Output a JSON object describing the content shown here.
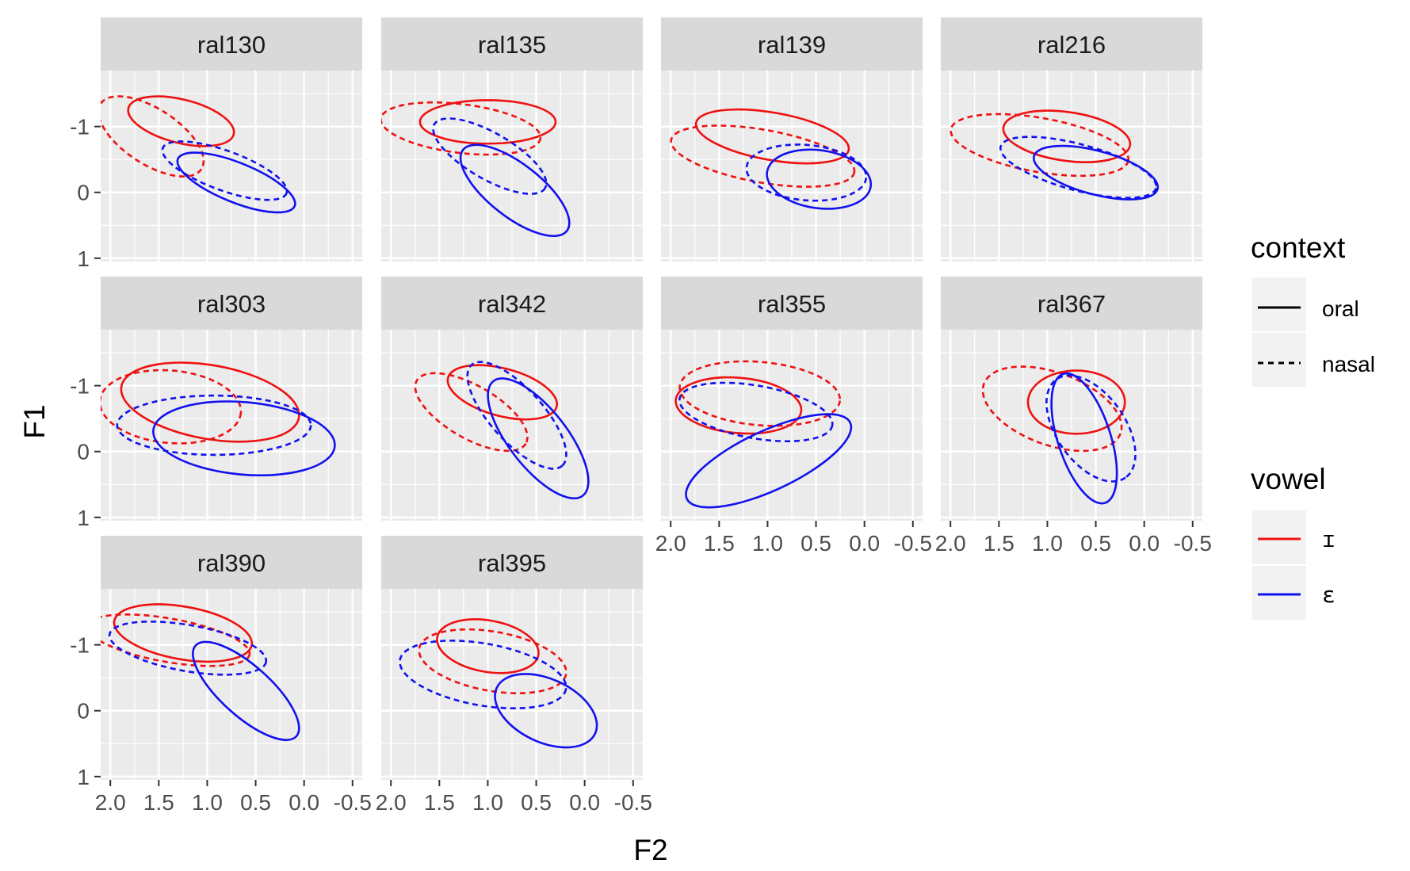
{
  "chart_data": {
    "type": "ellipse",
    "xlabel": "F2",
    "ylabel": "F1",
    "x_reversed": true,
    "y_reversed": true,
    "xlim": [
      2.1,
      -0.6
    ],
    "ylim": [
      -1.85,
      1.05
    ],
    "x_ticks": [
      2.0,
      1.5,
      1.0,
      0.5,
      0.0,
      -0.5
    ],
    "x_tick_labels": [
      "2.0",
      "1.5",
      "1.0",
      "0.5",
      "0.0",
      "-0.5"
    ],
    "y_ticks": [
      -1,
      0,
      1
    ],
    "y_tick_labels": [
      "-1",
      "0",
      "1"
    ],
    "grid": true,
    "legend_position": "right",
    "colors": {
      "ɪ": "#ee1111",
      "ɛ": "#1111ee"
    },
    "legend": {
      "context": {
        "title": "context",
        "items": [
          {
            "label": "oral",
            "linetype": "solid"
          },
          {
            "label": "nasal",
            "linetype": "dashed"
          }
        ]
      },
      "vowel": {
        "title": "vowel",
        "items": [
          {
            "label": "ɪ",
            "color": "#ee1111"
          },
          {
            "label": "ɛ",
            "color": "#1111ee"
          }
        ]
      }
    },
    "panels": [
      {
        "name": "ral130",
        "ellipses": [
          {
            "vowel": "ɪ",
            "context": "oral",
            "cx": 1.27,
            "cy": -1.08,
            "rx": 0.56,
            "ry": 0.33,
            "angle": 14
          },
          {
            "vowel": "ɪ",
            "context": "nasal",
            "cx": 1.58,
            "cy": -0.85,
            "rx": 0.62,
            "ry": 0.42,
            "angle": 33
          },
          {
            "vowel": "ɛ",
            "context": "oral",
            "cx": 0.7,
            "cy": -0.15,
            "rx": 0.65,
            "ry": 0.3,
            "angle": 22
          },
          {
            "vowel": "ɛ",
            "context": "nasal",
            "cx": 0.82,
            "cy": -0.33,
            "rx": 0.68,
            "ry": 0.3,
            "angle": 20
          }
        ]
      },
      {
        "name": "ral135",
        "ellipses": [
          {
            "vowel": "ɪ",
            "context": "oral",
            "cx": 1.0,
            "cy": -1.07,
            "rx": 0.7,
            "ry": 0.33,
            "angle": 0
          },
          {
            "vowel": "ɪ",
            "context": "nasal",
            "cx": 1.28,
            "cy": -0.97,
            "rx": 0.83,
            "ry": 0.37,
            "angle": 7
          },
          {
            "vowel": "ɛ",
            "context": "oral",
            "cx": 0.72,
            "cy": -0.03,
            "rx": 0.68,
            "ry": 0.4,
            "angle": 38
          },
          {
            "vowel": "ɛ",
            "context": "nasal",
            "cx": 0.98,
            "cy": -0.55,
            "rx": 0.66,
            "ry": 0.35,
            "angle": 30
          }
        ]
      },
      {
        "name": "ral139",
        "ellipses": [
          {
            "vowel": "ɪ",
            "context": "oral",
            "cx": 0.95,
            "cy": -0.85,
            "rx": 0.8,
            "ry": 0.36,
            "angle": 10
          },
          {
            "vowel": "ɪ",
            "context": "nasal",
            "cx": 1.05,
            "cy": -0.55,
            "rx": 0.96,
            "ry": 0.4,
            "angle": 10
          },
          {
            "vowel": "ɛ",
            "context": "oral",
            "cx": 0.47,
            "cy": -0.2,
            "rx": 0.54,
            "ry": 0.44,
            "angle": 8
          },
          {
            "vowel": "ɛ",
            "context": "nasal",
            "cx": 0.6,
            "cy": -0.3,
            "rx": 0.62,
            "ry": 0.42,
            "angle": 5
          }
        ]
      },
      {
        "name": "ral216",
        "ellipses": [
          {
            "vowel": "ɪ",
            "context": "oral",
            "cx": 0.8,
            "cy": -0.85,
            "rx": 0.66,
            "ry": 0.37,
            "angle": 8
          },
          {
            "vowel": "ɪ",
            "context": "nasal",
            "cx": 1.08,
            "cy": -0.72,
            "rx": 0.93,
            "ry": 0.41,
            "angle": 10
          },
          {
            "vowel": "ɛ",
            "context": "oral",
            "cx": 0.5,
            "cy": -0.3,
            "rx": 0.66,
            "ry": 0.33,
            "angle": 15
          },
          {
            "vowel": "ɛ",
            "context": "nasal",
            "cx": 0.68,
            "cy": -0.38,
            "rx": 0.83,
            "ry": 0.35,
            "angle": 15
          }
        ]
      },
      {
        "name": "ral303",
        "ellipses": [
          {
            "vowel": "ɪ",
            "context": "oral",
            "cx": 0.97,
            "cy": -0.75,
            "rx": 0.93,
            "ry": 0.56,
            "angle": 10
          },
          {
            "vowel": "ɪ",
            "context": "nasal",
            "cx": 1.38,
            "cy": -0.68,
            "rx": 0.73,
            "ry": 0.55,
            "angle": 5
          },
          {
            "vowel": "ɛ",
            "context": "oral",
            "cx": 0.62,
            "cy": -0.2,
            "rx": 0.94,
            "ry": 0.55,
            "angle": 5
          },
          {
            "vowel": "ɛ",
            "context": "nasal",
            "cx": 0.93,
            "cy": -0.4,
            "rx": 1.0,
            "ry": 0.45,
            "angle": 0
          }
        ]
      },
      {
        "name": "ral342",
        "ellipses": [
          {
            "vowel": "ɪ",
            "context": "oral",
            "cx": 0.85,
            "cy": -0.9,
            "rx": 0.58,
            "ry": 0.36,
            "angle": 15
          },
          {
            "vowel": "ɪ",
            "context": "nasal",
            "cx": 1.17,
            "cy": -0.6,
            "rx": 0.65,
            "ry": 0.4,
            "angle": 30
          },
          {
            "vowel": "ɛ",
            "context": "oral",
            "cx": 0.48,
            "cy": -0.2,
            "rx": 0.75,
            "ry": 0.44,
            "angle": 52
          },
          {
            "vowel": "ɛ",
            "context": "nasal",
            "cx": 0.7,
            "cy": -0.55,
            "rx": 0.7,
            "ry": 0.4,
            "angle": 48
          }
        ]
      },
      {
        "name": "ral355",
        "ellipses": [
          {
            "vowel": "ɪ",
            "context": "oral",
            "cx": 1.3,
            "cy": -0.7,
            "rx": 0.65,
            "ry": 0.42,
            "angle": 5
          },
          {
            "vowel": "ɪ",
            "context": "nasal",
            "cx": 1.08,
            "cy": -0.88,
            "rx": 0.83,
            "ry": 0.48,
            "angle": 5
          },
          {
            "vowel": "ɛ",
            "context": "oral",
            "cx": 0.99,
            "cy": 0.14,
            "rx": 0.93,
            "ry": 0.45,
            "angle": -25
          },
          {
            "vowel": "ɛ",
            "context": "nasal",
            "cx": 1.12,
            "cy": -0.6,
            "rx": 0.8,
            "ry": 0.4,
            "angle": 10
          }
        ]
      },
      {
        "name": "ral367",
        "ellipses": [
          {
            "vowel": "ɪ",
            "context": "oral",
            "cx": 0.7,
            "cy": -0.75,
            "rx": 0.5,
            "ry": 0.48,
            "angle": 0
          },
          {
            "vowel": "ɪ",
            "context": "nasal",
            "cx": 0.95,
            "cy": -0.65,
            "rx": 0.75,
            "ry": 0.55,
            "angle": 20
          },
          {
            "vowel": "ɛ",
            "context": "oral",
            "cx": 0.62,
            "cy": -0.2,
            "rx": 0.7,
            "ry": 0.4,
            "angle": 72
          },
          {
            "vowel": "ɛ",
            "context": "nasal",
            "cx": 0.55,
            "cy": -0.35,
            "rx": 0.62,
            "ry": 0.52,
            "angle": 55
          }
        ]
      },
      {
        "name": "ral390",
        "ellipses": [
          {
            "vowel": "ɪ",
            "context": "oral",
            "cx": 1.25,
            "cy": -1.18,
            "rx": 0.72,
            "ry": 0.4,
            "angle": 10
          },
          {
            "vowel": "ɪ",
            "context": "nasal",
            "cx": 1.4,
            "cy": -1.07,
            "rx": 0.85,
            "ry": 0.33,
            "angle": 10
          },
          {
            "vowel": "ɛ",
            "context": "oral",
            "cx": 0.6,
            "cy": -0.3,
            "rx": 0.7,
            "ry": 0.38,
            "angle": 42
          },
          {
            "vowel": "ɛ",
            "context": "nasal",
            "cx": 1.2,
            "cy": -0.95,
            "rx": 0.82,
            "ry": 0.35,
            "angle": 10
          }
        ]
      },
      {
        "name": "ral395",
        "ellipses": [
          {
            "vowel": "ɪ",
            "context": "oral",
            "cx": 1.0,
            "cy": -0.98,
            "rx": 0.53,
            "ry": 0.39,
            "angle": 10
          },
          {
            "vowel": "ɪ",
            "context": "nasal",
            "cx": 0.95,
            "cy": -0.75,
            "rx": 0.77,
            "ry": 0.45,
            "angle": 10
          },
          {
            "vowel": "ɛ",
            "context": "oral",
            "cx": 0.4,
            "cy": 0.0,
            "rx": 0.56,
            "ry": 0.48,
            "angle": 25
          },
          {
            "vowel": "ɛ",
            "context": "nasal",
            "cx": 1.05,
            "cy": -0.55,
            "rx": 0.87,
            "ry": 0.47,
            "angle": 10
          }
        ]
      }
    ]
  }
}
